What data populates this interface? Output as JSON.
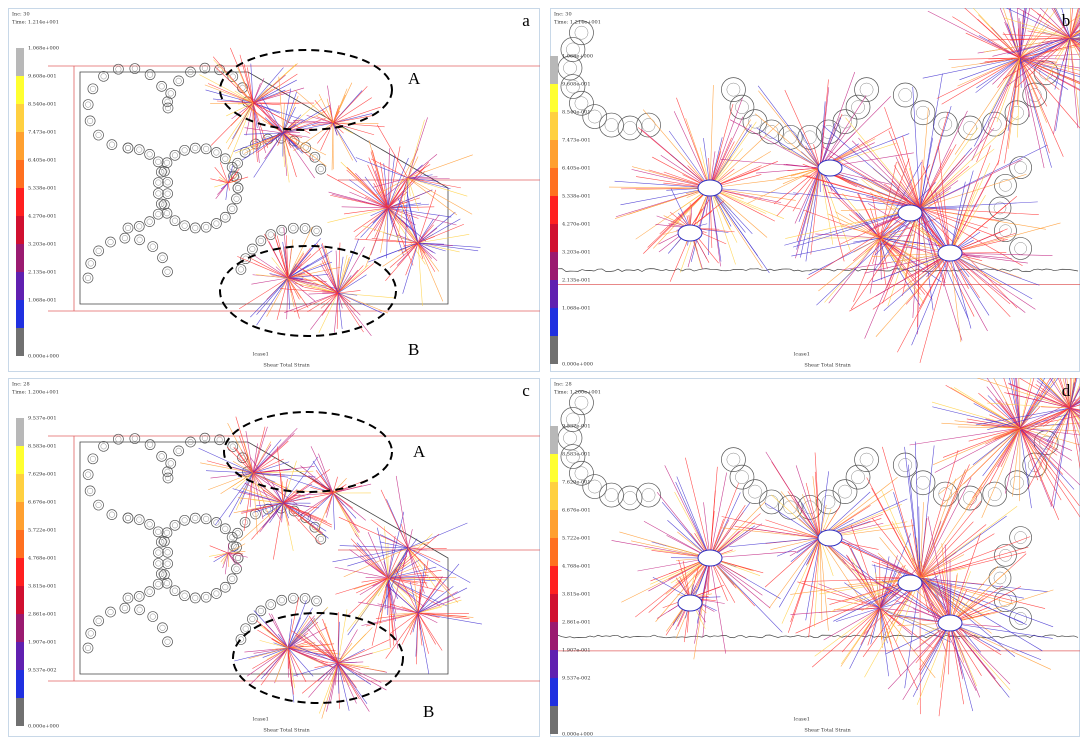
{
  "panels": [
    {
      "label": "a",
      "inc": "Inc:  30",
      "time": "Time:  1.214e+001",
      "legend": [
        "1.068e+000",
        "9.608e-001",
        "8.540e-001",
        "7.473e-001",
        "6.405e-001",
        "5.338e-001",
        "4.270e-001",
        "3.203e-001",
        "2.135e-001",
        "1.068e-001",
        "0.000e+000"
      ],
      "markers": [
        "A",
        "B"
      ],
      "loadcase": "lcase1",
      "quantity": "Shear Total Strain"
    },
    {
      "label": "b",
      "inc": "Inc:  30",
      "time": "Time:  1.214e+001",
      "legend": [
        "1.068e+000",
        "9.608e-001",
        "8.540e-001",
        "7.473e-001",
        "6.405e-001",
        "5.338e-001",
        "4.270e-001",
        "3.203e-001",
        "2.135e-001",
        "1.068e-001",
        "0.000e+000"
      ],
      "markers": [],
      "loadcase": "lcase1",
      "quantity": "Shear Total Strain"
    },
    {
      "label": "c",
      "inc": "Inc:  28",
      "time": "Time:  1.200e+001",
      "legend": [
        "9.537e-001",
        "8.583e-001",
        "7.629e-001",
        "6.676e-001",
        "5.722e-001",
        "4.768e-001",
        "3.815e-001",
        "2.861e-001",
        "1.907e-001",
        "9.537e-002",
        "0.000e+000"
      ],
      "markers": [
        "A",
        "B"
      ],
      "loadcase": "lcase1",
      "quantity": "Shear Total Strain"
    },
    {
      "label": "d",
      "inc": "Inc:  28",
      "time": "Time:  1.200e+001",
      "legend": [
        "9.537e-001",
        "8.583e-001",
        "7.629e-001",
        "6.676e-001",
        "5.722e-001",
        "4.768e-001",
        "3.815e-001",
        "2.861e-001",
        "1.907e-001",
        "9.537e-002",
        "0.000e+000"
      ],
      "markers": [],
      "loadcase": "lcase1",
      "quantity": "Shear Total Strain"
    }
  ]
}
